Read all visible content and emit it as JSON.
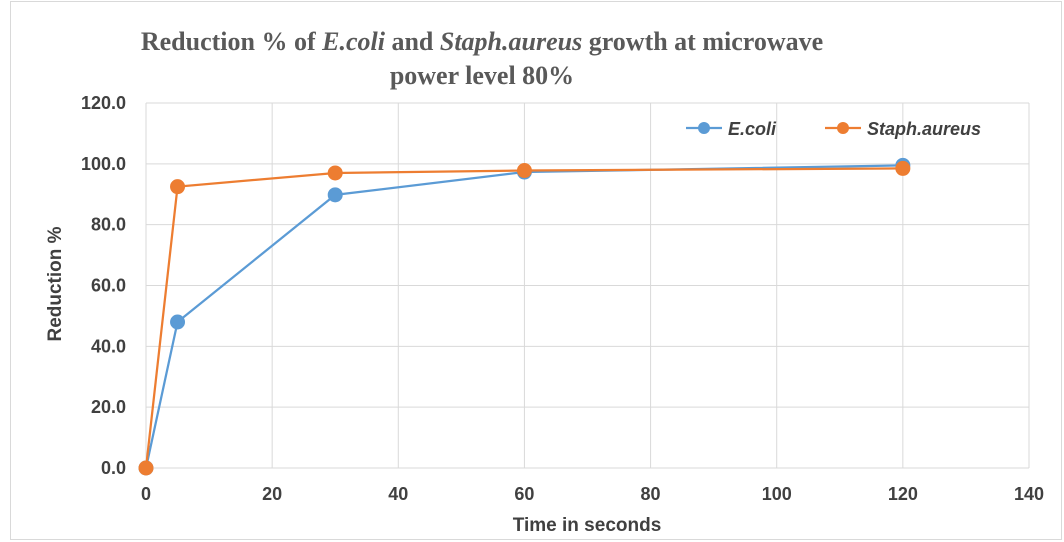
{
  "chart_data": {
    "type": "line",
    "title": {
      "line1": [
        {
          "text": "Reduction % of ",
          "italic": false
        },
        {
          "text": "E.coli",
          "italic": true
        },
        {
          "text": " and ",
          "italic": false
        },
        {
          "text": "Staph.aureus",
          "italic": true
        },
        {
          "text": " growth at microwave",
          "italic": false
        }
      ],
      "line2": "power level 80%"
    },
    "xlabel": "Time in seconds",
    "ylabel": "Reduction %",
    "xlim": [
      0,
      140
    ],
    "ylim": [
      0,
      120
    ],
    "x_ticks": [
      "0",
      "20",
      "40",
      "60",
      "80",
      "100",
      "120",
      "140"
    ],
    "y_ticks": [
      "0.0",
      "20.0",
      "40.0",
      "60.0",
      "80.0",
      "100.0",
      "120.0"
    ],
    "grid": true,
    "legend_position": "top-right",
    "series": [
      {
        "name": "E.coli",
        "color": "#5b9bd5",
        "x": [
          0,
          5,
          30,
          60,
          120
        ],
        "y": [
          0.0,
          48.0,
          89.8,
          97.3,
          99.5
        ]
      },
      {
        "name": "Staph.aureus",
        "color": "#ed7d31",
        "x": [
          0,
          5,
          30,
          60,
          120
        ],
        "y": [
          0.0,
          92.5,
          97.0,
          97.8,
          98.5
        ]
      }
    ]
  }
}
